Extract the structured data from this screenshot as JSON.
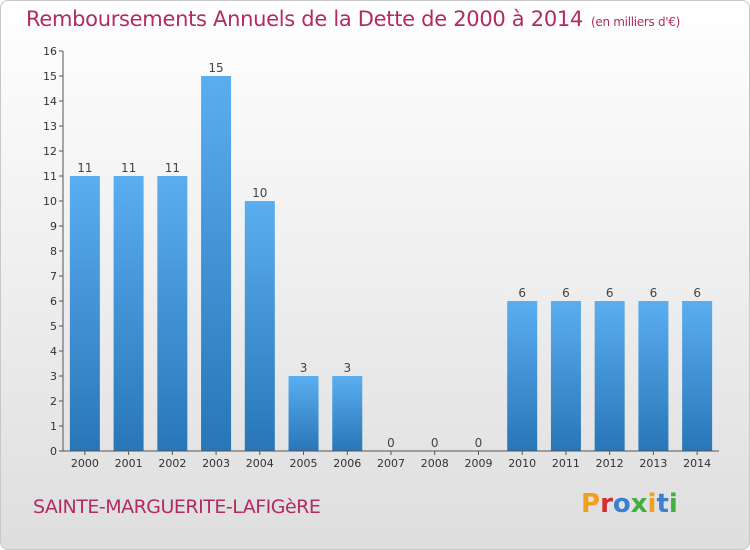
{
  "header": {
    "title": "Remboursements Annuels de la Dette de 2000 à 2014",
    "unit": "(en milliers d'€)"
  },
  "footer": {
    "commune": "SAINTE-MARGUERITE-LAFIGèRE",
    "logo": "Proxiti"
  },
  "colors": {
    "title": "#b22b63",
    "bar_top": "#5aaef0",
    "bar_bottom": "#2876b8",
    "logo_letters": [
      "#f0a020",
      "#d03030",
      "#3a7fd0",
      "#40b040",
      "#f0a020",
      "#3a7fd0",
      "#40b040"
    ]
  },
  "chart_data": {
    "type": "bar",
    "categories": [
      "2000",
      "2001",
      "2002",
      "2003",
      "2004",
      "2005",
      "2006",
      "2007",
      "2008",
      "2009",
      "2010",
      "2011",
      "2012",
      "2013",
      "2014"
    ],
    "values": [
      11,
      11,
      11,
      15,
      10,
      3,
      3,
      0,
      0,
      0,
      6,
      6,
      6,
      6,
      6
    ],
    "data_labels": [
      "11",
      "11",
      "11",
      "15",
      "10",
      "3",
      "3",
      "0",
      "0",
      "0",
      "6",
      "6",
      "6",
      "6",
      "6"
    ],
    "y_ticks": [
      "0",
      "1",
      "2",
      "3",
      "4",
      "5",
      "6",
      "7",
      "8",
      "9",
      "10",
      "11",
      "12",
      "13",
      "14",
      "15",
      "16"
    ],
    "ylim": [
      0,
      16
    ],
    "grid": false,
    "legend": "none"
  }
}
